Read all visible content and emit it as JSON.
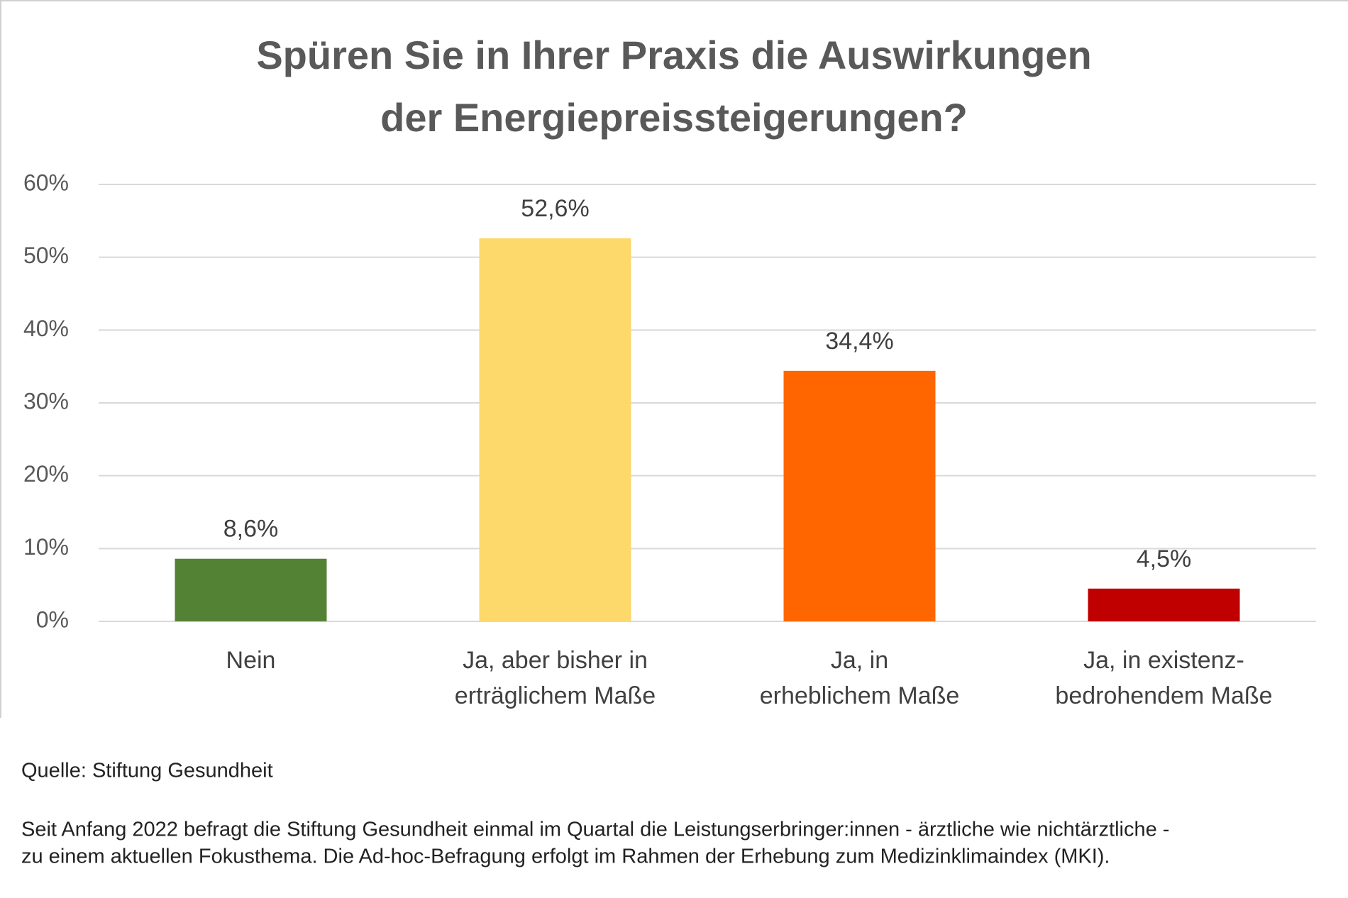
{
  "chart_data": {
    "type": "bar",
    "title": [
      "Spüren Sie in Ihrer Praxis die Auswirkungen",
      "der Energiepreissteigerungen?"
    ],
    "categories": [
      [
        "Nein"
      ],
      [
        "Ja, aber bisher in",
        "erträglichem Maße"
      ],
      [
        "Ja, in",
        "erheblichem Maße"
      ],
      [
        "Ja, in existenz-",
        "bedrohendem Maße"
      ]
    ],
    "values": [
      8.6,
      52.6,
      34.4,
      4.5
    ],
    "value_labels": [
      "8,6%",
      "52,6%",
      "34,4%",
      "4,5%"
    ],
    "colors": [
      "#548235",
      "#fdd86b",
      "#ff6600",
      "#c00000"
    ],
    "ylim": [
      0,
      60
    ],
    "yticks": [
      {
        "value": 0,
        "label": "0%"
      },
      {
        "value": 10,
        "label": "10%"
      },
      {
        "value": 20,
        "label": "20%"
      },
      {
        "value": 30,
        "label": "30%"
      },
      {
        "value": 40,
        "label": "40%"
      },
      {
        "value": 50,
        "label": "50%"
      },
      {
        "value": 60,
        "label": "60%"
      }
    ],
    "grid": true,
    "source": "Quelle: Stiftung Gesundheit",
    "note": [
      "Seit Anfang 2022 befragt die Stiftung Gesundheit einmal im Quartal die Leistungserbringer:innen - ärztliche wie nichtärztliche -",
      "zu einem aktuellen Fokusthema. Die Ad-hoc-Befragung erfolgt im Rahmen der Erhebung zum Medizinklimaindex (MKI)."
    ]
  }
}
